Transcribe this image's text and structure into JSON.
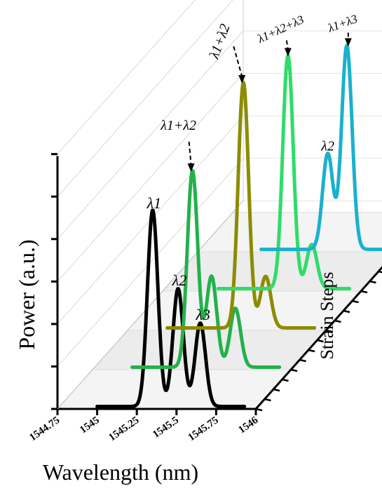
{
  "chart_data": {
    "type": "line",
    "variant": "3d-waterfall",
    "xlabel": "Wavelength (nm)",
    "ylabel": "Power (a.u.)",
    "zlabel": "Strain Steps",
    "xlim": [
      1544.75,
      1546
    ],
    "x_ticks": [
      "1544.75",
      "1545",
      "1545.25",
      "1545.5",
      "1545.75",
      "1546"
    ],
    "grid": true,
    "series": [
      {
        "color": "#000000",
        "peaks": [
          {
            "x": 1545.35,
            "y": 0.8,
            "label": "λ1"
          },
          {
            "x": 1545.51,
            "y": 0.48,
            "label": "λ2"
          },
          {
            "x": 1545.65,
            "y": 0.34,
            "label": "λ3"
          }
        ]
      },
      {
        "color": "#22b14c",
        "peaks": [
          {
            "x": 1545.38,
            "y": 0.8,
            "label": "λ1+λ2"
          },
          {
            "x": 1545.5,
            "y": 0.37
          },
          {
            "x": 1545.65,
            "y": 0.24
          }
        ]
      },
      {
        "color": "#8c8c00",
        "peaks": [
          {
            "x": 1545.48,
            "y": 1.0,
            "label": "λ1+λ2"
          },
          {
            "x": 1545.62,
            "y": 0.21
          }
        ]
      },
      {
        "color": "#2fdc6a",
        "peaks": [
          {
            "x": 1545.54,
            "y": 0.95,
            "label": "λ1+λ2+λ3"
          },
          {
            "x": 1545.69,
            "y": 0.18
          }
        ]
      },
      {
        "color": "#1ab1cf",
        "peaks": [
          {
            "x": 1545.57,
            "y": 0.39,
            "label": "λ2"
          },
          {
            "x": 1545.69,
            "y": 0.83,
            "label": "λ1+λ3"
          }
        ]
      }
    ]
  }
}
